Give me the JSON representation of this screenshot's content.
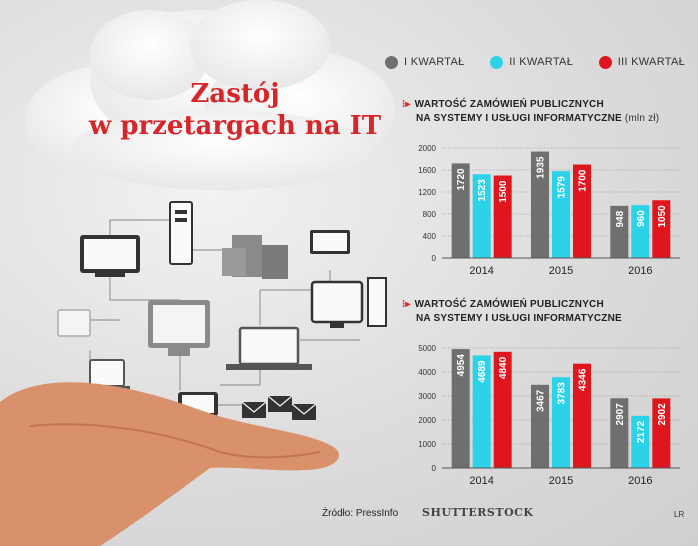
{
  "header": {
    "title_line1": "Zastój",
    "title_line2": "w przetargach na IT"
  },
  "legend": [
    {
      "label": "I KWARTAŁ",
      "color": "#6f6f6f"
    },
    {
      "label": "II KWARTAŁ",
      "color": "#2cd3e8"
    },
    {
      "label": "III KWARTAŁ",
      "color": "#e0161e"
    }
  ],
  "chart_data": [
    {
      "type": "bar",
      "title_line1": "WARTOŚĆ ZAMÓWIEŃ PUBLICZNYCH",
      "title_line2": "NA SYSTEMY I USŁUGI INFORMATYCZNE",
      "unit": "(mln zł)",
      "categories": [
        "2014",
        "2015",
        "2016"
      ],
      "series": [
        {
          "name": "I KWARTAŁ",
          "values": [
            1720,
            1935,
            948
          ]
        },
        {
          "name": "II KWARTAŁ",
          "values": [
            1523,
            1579,
            960
          ]
        },
        {
          "name": "III KWARTAŁ",
          "values": [
            1500,
            1700,
            1050
          ]
        }
      ],
      "yticks": [
        0,
        400,
        800,
        1200,
        1600,
        2000
      ],
      "ylim": [
        0,
        2000
      ],
      "grid": true
    },
    {
      "type": "bar",
      "title_line1": "WARTOŚĆ ZAMÓWIEŃ PUBLICZNYCH",
      "title_line2": "NA SYSTEMY I USŁUGI INFORMATYCZNE",
      "unit": "",
      "categories": [
        "2014",
        "2015",
        "2016"
      ],
      "series": [
        {
          "name": "I KWARTAŁ",
          "values": [
            4954,
            3467,
            2907
          ]
        },
        {
          "name": "II KWARTAŁ",
          "values": [
            4689,
            3783,
            2172
          ]
        },
        {
          "name": "III KWARTAŁ",
          "values": [
            4840,
            4346,
            2902
          ]
        }
      ],
      "yticks": [
        0,
        1000,
        2000,
        3000,
        4000,
        5000
      ],
      "ylim": [
        0,
        5000
      ],
      "grid": true
    }
  ],
  "footer": {
    "source": "Źródło: PressInfo",
    "credit": "SHUTTERSTOCK",
    "initials": "LR"
  }
}
